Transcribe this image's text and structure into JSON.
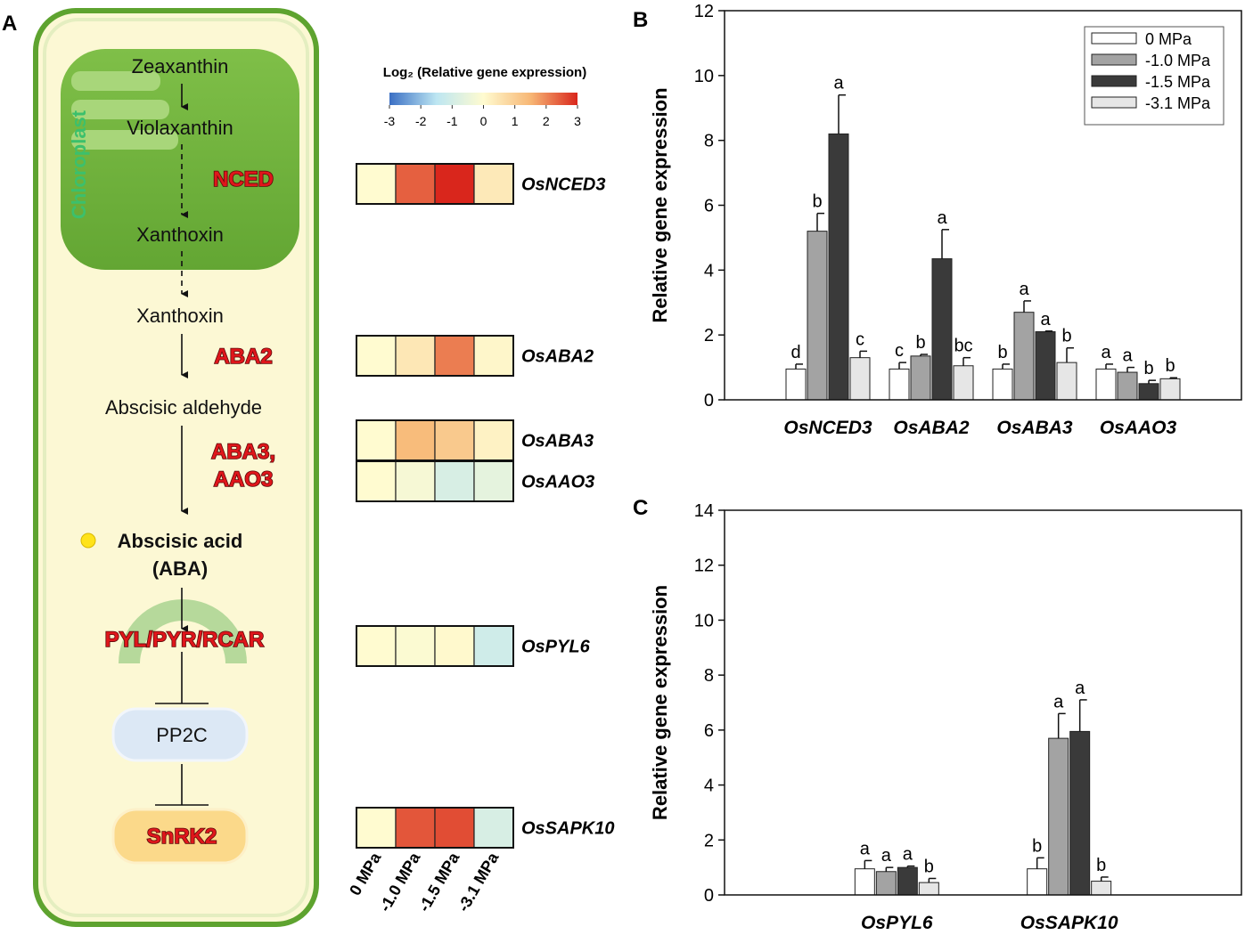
{
  "diagram": {
    "label": "A",
    "chloroplast": "Chloroplast",
    "steps": [
      "Zeaxanthin",
      "Violaxanthin",
      "Xanthoxin",
      "Xanthoxin",
      "Abscisic aldehyde"
    ],
    "enzymes": [
      "NCED",
      "ABA2",
      "ABA3,",
      "AAO3"
    ],
    "product": [
      "Abscisic acid",
      "(ABA)"
    ],
    "receptor": "PYL/PYR/RCAR",
    "phosphatase": "PP2C",
    "kinase": "SnRK2"
  },
  "heatmap": {
    "title": "Log₂ (Relative gene expression)",
    "clim": [
      -3,
      3
    ],
    "ticks": [
      -3,
      -2,
      -1,
      0,
      1,
      2,
      3
    ],
    "colorscale": [
      "#3a6fc4",
      "#bde6f2",
      "#fffbd0",
      "#f7b775",
      "#d9261c"
    ],
    "columns": [
      "0 MPa",
      "-1.0 MPa",
      "-1.5 MPa",
      "-3.1 MPa"
    ],
    "rows": [
      "OsNCED3",
      "OsABA2",
      "OsABA3",
      "OsAAO3",
      "OsPYL6",
      "OsSAPK10"
    ],
    "values": [
      [
        0,
        2.4,
        3.0,
        0.4
      ],
      [
        0,
        0.45,
        2.1,
        0.1
      ],
      [
        0,
        1.4,
        1.1,
        0.2
      ],
      [
        0,
        -0.2,
        -0.9,
        -0.6
      ],
      [
        0,
        -0.1,
        0.05,
        -1.1
      ],
      [
        0,
        2.5,
        2.6,
        -0.9
      ]
    ]
  },
  "chart_data": [
    {
      "type": "bar",
      "label": "B",
      "y_label": "Relative gene expression",
      "categories": [
        "OsNCED3",
        "OsABA2",
        "OsABA3",
        "OsAAO3"
      ],
      "ylim": [
        0,
        12
      ],
      "yticks": [
        0,
        2,
        4,
        6,
        8,
        10,
        12
      ],
      "legend": "upper right",
      "series": [
        {
          "name": "0 MPa",
          "color": "#ffffff",
          "values": [
            0.95,
            0.95,
            0.95,
            0.95
          ],
          "errors": [
            0.15,
            0.2,
            0.15,
            0.15
          ],
          "letters": [
            "d",
            "c",
            "b",
            "a"
          ]
        },
        {
          "name": "-1.0 MPa",
          "color": "#a3a3a3",
          "values": [
            5.2,
            1.35,
            2.7,
            0.85
          ],
          "errors": [
            0.55,
            0.05,
            0.35,
            0.15
          ],
          "letters": [
            "b",
            "b",
            "a",
            "a"
          ]
        },
        {
          "name": "-1.5 MPa",
          "color": "#3a3a3a",
          "values": [
            8.2,
            4.35,
            2.1,
            0.5
          ],
          "errors": [
            1.2,
            0.9,
            0.02,
            0.1
          ],
          "letters": [
            "a",
            "a",
            "a",
            "b"
          ]
        },
        {
          "name": "-3.1 MPa",
          "color": "#e6e6e6",
          "values": [
            1.3,
            1.05,
            1.15,
            0.65
          ],
          "errors": [
            0.2,
            0.25,
            0.45,
            0.03
          ],
          "letters": [
            "c",
            "bc",
            "b",
            "b"
          ]
        }
      ]
    },
    {
      "type": "bar",
      "label": "C",
      "y_label": "Relative gene expression",
      "categories": [
        "OsPYL6",
        "OsSAPK10"
      ],
      "ylim": [
        0,
        14
      ],
      "yticks": [
        0,
        2,
        4,
        6,
        8,
        10,
        12,
        14
      ],
      "series": [
        {
          "color": "#ffffff",
          "values": [
            0.95,
            0.95
          ],
          "errors": [
            0.3,
            0.4
          ],
          "letters": [
            "a",
            "b"
          ]
        },
        {
          "color": "#a3a3a3",
          "values": [
            0.85,
            5.7
          ],
          "errors": [
            0.15,
            0.9
          ],
          "letters": [
            "a",
            "a"
          ]
        },
        {
          "color": "#3a3a3a",
          "values": [
            1.0,
            5.95
          ],
          "errors": [
            0.05,
            1.15
          ],
          "letters": [
            "a",
            "a"
          ]
        },
        {
          "color": "#e6e6e6",
          "values": [
            0.45,
            0.5
          ],
          "errors": [
            0.15,
            0.15
          ],
          "letters": [
            "b",
            "b"
          ]
        }
      ]
    }
  ]
}
